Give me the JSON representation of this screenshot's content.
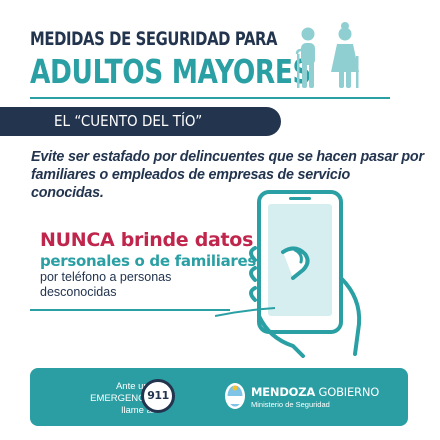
{
  "header": {
    "title_line1": "MEDIDAS DE SEGURIDAD PARA",
    "title_line2": "ADULTOS MAYORES",
    "icon": "elderly-couple-icon"
  },
  "banner": {
    "label": "EL “CUENTO DEL TÍO”"
  },
  "intro": {
    "text": "Evite ser estafado por delincuentes que se hacen pasar por familiares o empleados de empresas de servicio conocidas."
  },
  "message": {
    "emphasis": "NUNCA brinde datos",
    "line2": "personales o de familiares",
    "line3": "por teléfono a  personas desconocidas",
    "illustration": "hand-smartphone-icon"
  },
  "footer": {
    "emergency_text": [
      "Ante una",
      "EMERGENCIA",
      "llame al"
    ],
    "emergency_number": "911",
    "gov_name_bold": "MENDOZA",
    "gov_name_rest": " GOBIERNO",
    "gov_ministry": "Ministerio de Seguridad",
    "gov_icon": "mendoza-shield-icon"
  },
  "colors": {
    "navy": "#23344e",
    "teal": "#2aa0a4",
    "red": "#c0254c",
    "footer_bg": "#2a9ea3"
  }
}
